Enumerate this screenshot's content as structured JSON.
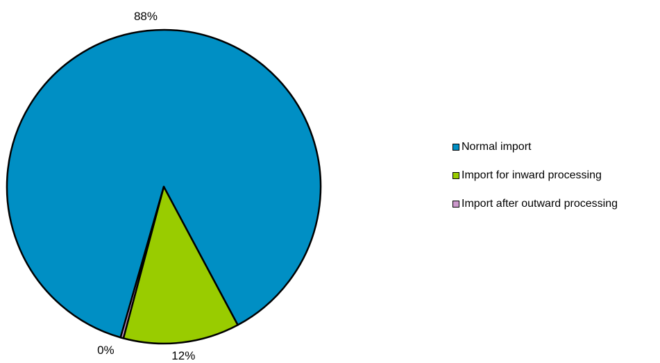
{
  "chart_data": {
    "type": "pie",
    "title": "",
    "slices": [
      {
        "label": "Normal import",
        "value": 88,
        "display": "88%",
        "color": "#008FC4"
      },
      {
        "label": "Import for inward processing",
        "value": 12,
        "display": "12%",
        "color": "#99CC00"
      },
      {
        "label": "Import after outward processing",
        "value": 0.3,
        "display": "0%",
        "color": "#CC99CC"
      }
    ],
    "legend_position": "right",
    "start_angle_deg": 196,
    "direction": "clockwise"
  }
}
